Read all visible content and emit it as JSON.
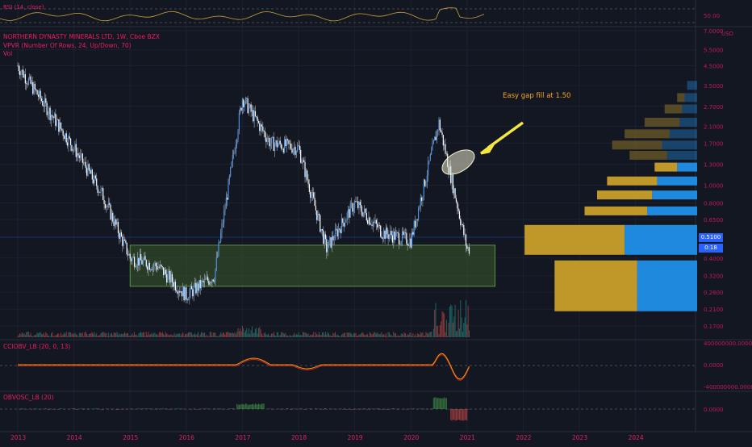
{
  "legend": {
    "title": "NORTHERN DYNASTY MINERALS LTD, 1W, Cboe BZX",
    "vpvr": "VPVR (Number Of Rows, 24, Up/Down, 70)",
    "vol": "Vol"
  },
  "rsi_panel": {
    "label": "RSI (14, close)",
    "tick": "50.00"
  },
  "annotation": "Easy gap fill at 1.50",
  "price_axis": {
    "unit": "USD",
    "ticks": [
      "7.0000",
      "5.5000",
      "4.5000",
      "3.5000",
      "2.7000",
      "2.1000",
      "1.7000",
      "1.3000",
      "1.0000",
      "0.8000",
      "0.6500",
      "0.4000",
      "0.3200",
      "0.2600",
      "0.2100",
      "0.1700"
    ],
    "price_badge": "0.5100",
    "countdown_badge": "0:18"
  },
  "indicator1": {
    "label": "CCIOBV_LB (20, 0, 13)",
    "ticks": [
      "400000000.0000",
      "0.0000",
      "-400000000.0000"
    ]
  },
  "indicator2": {
    "label": "OBVOSC_LB (20)",
    "ticks": [
      "0.0000"
    ]
  },
  "colors": {
    "background": "#131722",
    "candle": "#4a90e2",
    "wick": "#d1d4dc",
    "zone_fill": "#3a5a2a",
    "vpvr_up": "#2196f3",
    "vpvr_down": "#d4a52a",
    "annotation": "#f5a623",
    "arrow": "#f5e642",
    "accent": "#e91e63"
  },
  "chart_data": [
    {
      "type": "line",
      "subtype": "weekly-candles-approx",
      "title": "NORTHERN DYNASTY MINERALS LTD, 1W, Cboe BZX",
      "xlabel": "",
      "ylabel": "USD",
      "y_scale": "log",
      "x": [
        "2013",
        "2013.5",
        "2014",
        "2014.5",
        "2015",
        "2015.5",
        "2016",
        "2016.5",
        "2017",
        "2017.5",
        "2018",
        "2018.5",
        "2019",
        "2019.5",
        "2020",
        "2020.5",
        "2021"
      ],
      "series": [
        {
          "name": "",
          "values": [
            4.5,
            2.7,
            1.6,
            0.9,
            0.4,
            0.36,
            0.25,
            0.32,
            3.0,
            1.7,
            1.6,
            0.45,
            0.8,
            0.55,
            0.5,
            2.2,
            0.45
          ]
        }
      ],
      "zones": [
        {
          "from_year": 2015.0,
          "to_year": 2021.5,
          "low": 0.28,
          "high": 0.47
        }
      ],
      "x_ticks": [
        "2013",
        "2014",
        "2015",
        "2016",
        "2017",
        "2018",
        "2019",
        "2020",
        "2021",
        "2022",
        "2023",
        "2024"
      ],
      "vpvr_profile": [
        {
          "price": 3.5,
          "up": 8,
          "down": 0
        },
        {
          "price": 3.0,
          "up": 10,
          "down": 6
        },
        {
          "price": 2.6,
          "up": 12,
          "down": 14
        },
        {
          "price": 2.2,
          "up": 14,
          "down": 28
        },
        {
          "price": 1.9,
          "up": 22,
          "down": 36
        },
        {
          "price": 1.65,
          "up": 28,
          "down": 40
        },
        {
          "price": 1.45,
          "up": 24,
          "down": 30
        },
        {
          "price": 1.25,
          "up": 16,
          "down": 18
        },
        {
          "price": 1.05,
          "up": 32,
          "down": 40
        },
        {
          "price": 0.88,
          "up": 36,
          "down": 44
        },
        {
          "price": 0.72,
          "up": 40,
          "down": 50
        },
        {
          "price": 0.5,
          "up": 58,
          "down": 80
        },
        {
          "price": 0.33,
          "up": 48,
          "down": 66
        }
      ]
    }
  ]
}
